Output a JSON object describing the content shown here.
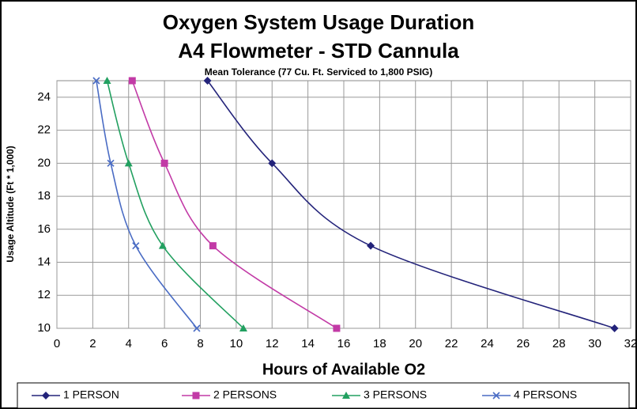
{
  "chart_data": {
    "type": "line",
    "title": "Oxygen System Usage Duration",
    "subtitle": "A4 Flowmeter - STD Cannula",
    "annotation": "Mean Tolerance (77 Cu. Ft. Serviced to 1,800 PSIG)",
    "xlabel": "Hours of Available O2",
    "ylabel": "Usage Altitude (Ft * 1,000)",
    "xlim": [
      0,
      32
    ],
    "xticks": [
      0,
      2,
      4,
      6,
      8,
      10,
      12,
      14,
      16,
      18,
      20,
      22,
      24,
      26,
      28,
      30,
      32
    ],
    "ylim": [
      10,
      25
    ],
    "yticks": [
      10,
      12,
      14,
      16,
      18,
      20,
      22,
      24
    ],
    "grid": true,
    "legend": "bottom",
    "series": [
      {
        "name": "1 PERSON",
        "color": "#23237a",
        "marker": "diamond",
        "x": [
          8.4,
          12,
          17.5,
          31.1
        ],
        "values": [
          25,
          20,
          15,
          10
        ]
      },
      {
        "name": "2 PERSONS",
        "color": "#c23aa6",
        "marker": "square",
        "x": [
          4.2,
          6,
          8.7,
          15.6
        ],
        "values": [
          25,
          20,
          15,
          10
        ]
      },
      {
        "name": "3 PERSONS",
        "color": "#22a060",
        "marker": "triangle",
        "x": [
          2.8,
          4,
          5.9,
          10.4
        ],
        "values": [
          25,
          20,
          15,
          10
        ]
      },
      {
        "name": "4 PERSONS",
        "color": "#4a6cc4",
        "marker": "cross",
        "x": [
          2.2,
          3,
          4.4,
          7.8
        ],
        "values": [
          25,
          20,
          15,
          10
        ]
      }
    ]
  }
}
